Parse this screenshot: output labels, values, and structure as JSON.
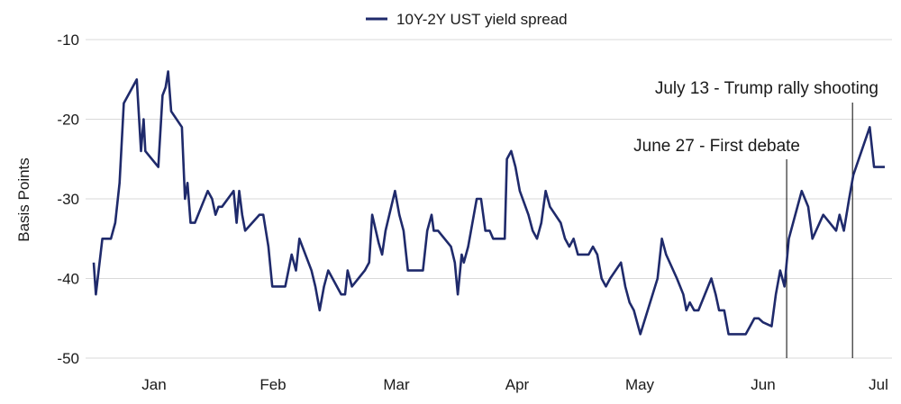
{
  "chart_data": {
    "type": "line",
    "title": "",
    "xlabel": "",
    "ylabel": "Basis Points",
    "ylim": [
      -50,
      -10
    ],
    "yticks": [
      -10,
      -20,
      -30,
      -40,
      -50
    ],
    "grid": true,
    "legend_position": "top-center",
    "x_ticks": [
      "Jan",
      "Feb",
      "Mar",
      "Apr",
      "May",
      "Jun",
      "Jul"
    ],
    "series": [
      {
        "name": "10Y-2Y UST yield spread",
        "color": "#1f2a6b",
        "points": [
          [
            0.0,
            -38
          ],
          [
            0.5,
            -42
          ],
          [
            2,
            -35
          ],
          [
            4,
            -35
          ],
          [
            5,
            -33
          ],
          [
            6,
            -28
          ],
          [
            7,
            -18
          ],
          [
            10,
            -15
          ],
          [
            11,
            -24
          ],
          [
            11.6,
            -20
          ],
          [
            12,
            -24
          ],
          [
            15,
            -26
          ],
          [
            16,
            -17
          ],
          [
            16.7,
            -16
          ],
          [
            17.3,
            -14
          ],
          [
            18,
            -19
          ],
          [
            20.5,
            -21
          ],
          [
            21.2,
            -30
          ],
          [
            21.8,
            -28
          ],
          [
            22.5,
            -33
          ],
          [
            23.5,
            -33
          ],
          [
            26.5,
            -29
          ],
          [
            27.5,
            -30
          ],
          [
            28.3,
            -32
          ],
          [
            29,
            -31
          ],
          [
            29.8,
            -31
          ],
          [
            32.5,
            -29
          ],
          [
            33.2,
            -33
          ],
          [
            33.8,
            -29
          ],
          [
            34.5,
            -32
          ],
          [
            35.2,
            -34
          ],
          [
            38.5,
            -32
          ],
          [
            39.4,
            -32
          ],
          [
            40.6,
            -36
          ],
          [
            41.5,
            -41
          ],
          [
            44.5,
            -41
          ],
          [
            46,
            -37
          ],
          [
            47,
            -39
          ],
          [
            47.8,
            -35
          ],
          [
            50.6,
            -39
          ],
          [
            51.5,
            -41
          ],
          [
            52.5,
            -44
          ],
          [
            53.5,
            -41
          ],
          [
            54.5,
            -39
          ],
          [
            56.5,
            -41
          ],
          [
            57.5,
            -42
          ],
          [
            58.4,
            -42
          ],
          [
            59,
            -39
          ],
          [
            60,
            -41
          ],
          [
            63,
            -39
          ],
          [
            64,
            -38
          ],
          [
            64.7,
            -32
          ],
          [
            66.2,
            -35.5
          ],
          [
            67,
            -37
          ],
          [
            67.8,
            -34
          ],
          [
            70,
            -29
          ],
          [
            71,
            -32
          ],
          [
            72,
            -34
          ],
          [
            73,
            -39
          ],
          [
            76.5,
            -39
          ],
          [
            77.5,
            -34
          ],
          [
            78.5,
            -32
          ],
          [
            79,
            -34
          ],
          [
            80,
            -34
          ],
          [
            83,
            -36
          ],
          [
            83.9,
            -38
          ],
          [
            84.6,
            -42
          ],
          [
            85.5,
            -37
          ],
          [
            86,
            -38
          ],
          [
            87,
            -36
          ],
          [
            89,
            -30
          ],
          [
            90,
            -30
          ],
          [
            91,
            -34
          ],
          [
            92,
            -34
          ],
          [
            92.8,
            -35
          ],
          [
            95.5,
            -35
          ],
          [
            96,
            -25
          ],
          [
            97,
            -24
          ],
          [
            98,
            -26
          ],
          [
            99,
            -29
          ],
          [
            101,
            -32
          ],
          [
            102,
            -34
          ],
          [
            103,
            -35
          ],
          [
            104,
            -33
          ],
          [
            105,
            -29
          ],
          [
            106,
            -31
          ],
          [
            108.5,
            -33
          ],
          [
            109.5,
            -35
          ],
          [
            110.5,
            -36
          ],
          [
            111.5,
            -35
          ],
          [
            112.5,
            -37
          ],
          [
            113.5,
            -37
          ],
          [
            115,
            -37
          ],
          [
            116,
            -36
          ],
          [
            117,
            -37
          ],
          [
            118,
            -40
          ],
          [
            119,
            -41
          ],
          [
            120,
            -40
          ],
          [
            122.5,
            -38
          ],
          [
            123.5,
            -41
          ],
          [
            124.5,
            -43
          ],
          [
            125.5,
            -44
          ],
          [
            127,
            -47
          ],
          [
            131,
            -40
          ],
          [
            132,
            -35
          ],
          [
            133,
            -37
          ],
          [
            135.5,
            -40
          ],
          [
            137,
            -42
          ],
          [
            137.7,
            -44
          ],
          [
            138.5,
            -43
          ],
          [
            139.5,
            -44
          ],
          [
            140.5,
            -44
          ],
          [
            143.5,
            -40
          ],
          [
            144.5,
            -42
          ],
          [
            145.3,
            -44
          ],
          [
            146.5,
            -44
          ],
          [
            147.5,
            -47
          ],
          [
            151.5,
            -47
          ],
          [
            152.5,
            -46
          ],
          [
            153.5,
            -45
          ],
          [
            154.5,
            -45
          ],
          [
            155.5,
            -45.5
          ],
          [
            157.5,
            -46
          ],
          [
            158.5,
            -42
          ],
          [
            159.5,
            -39
          ],
          [
            160.5,
            -41
          ],
          [
            161.5,
            -35
          ],
          [
            164.5,
            -29
          ],
          [
            166,
            -31
          ],
          [
            167,
            -35
          ],
          [
            169.5,
            -32
          ],
          [
            172.5,
            -34
          ],
          [
            173.3,
            -32
          ],
          [
            174.3,
            -34
          ],
          [
            175.5,
            -30
          ],
          [
            176.5,
            -27
          ],
          [
            180.3,
            -21
          ],
          [
            181.3,
            -26
          ],
          [
            183.8,
            -26
          ]
        ]
      }
    ],
    "annotations": [
      {
        "label": "June 27 - First debate",
        "date_index": 161.0
      },
      {
        "label": "July 13 - Trump rally shooting",
        "date_index": 176.3
      }
    ]
  }
}
